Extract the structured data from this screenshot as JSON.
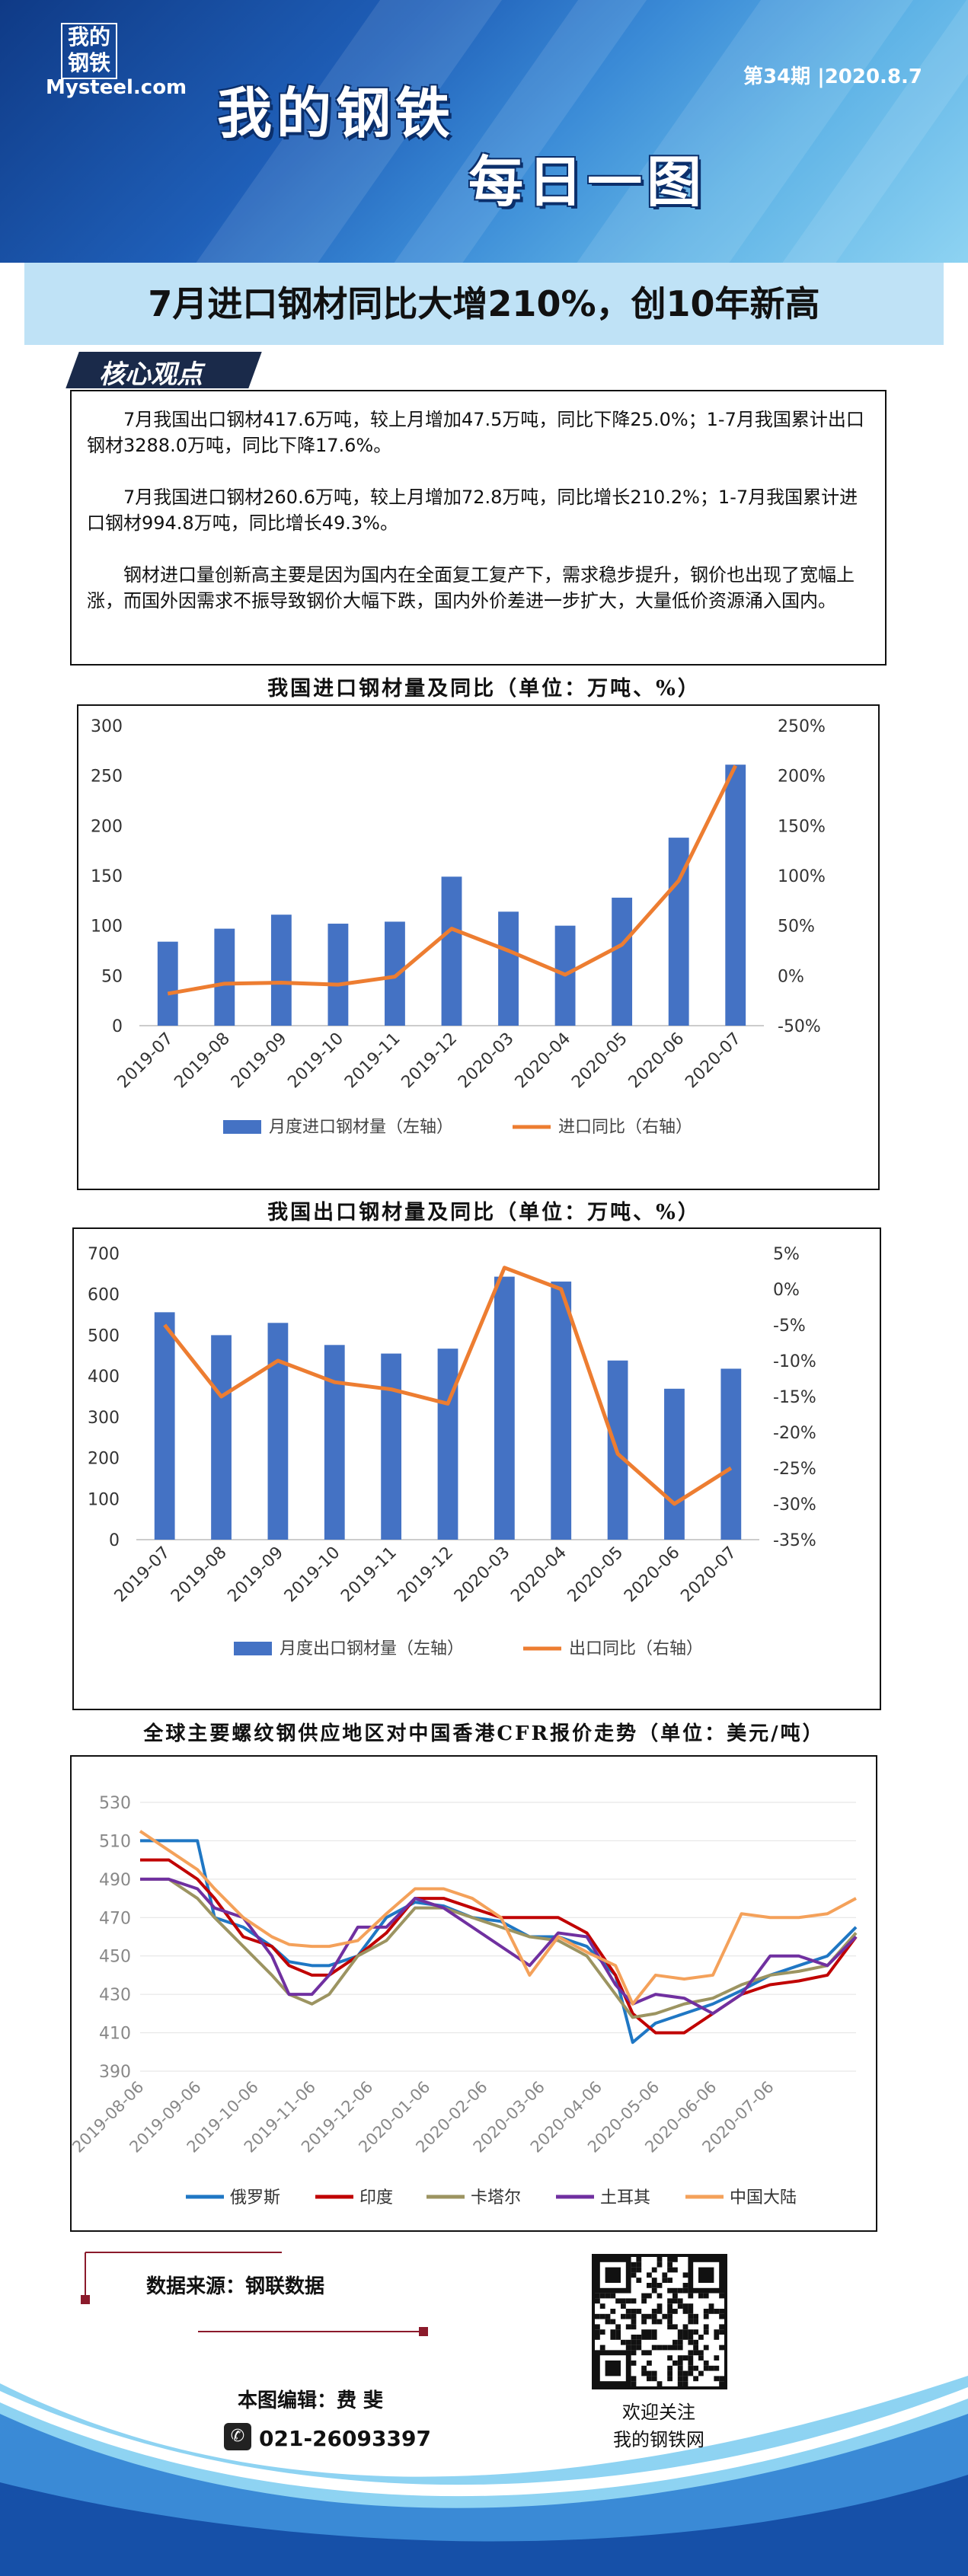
{
  "header": {
    "logo_cn": "我的钢铁",
    "logo_en": "Mysteel.com",
    "issue": "第34期 |2020.8.7",
    "title_main": "我的钢铁",
    "title_sub": "每日一图"
  },
  "headline": "7月进口钢材同比大增210%，创10年新高",
  "core": {
    "tag": "核心观点",
    "paragraphs": [
      "7月我国出口钢材417.6万吨，较上月增加47.5万吨，同比下降25.0%；1-7月我国累计出口钢材3288.0万吨，同比下降17.6%。",
      "7月我国进口钢材260.6万吨，较上月增加72.8万吨，同比增长210.2%；1-7月我国累计进口钢材994.8万吨，同比增长49.3%。",
      "钢材进口量创新高主要是因为国内在全面复工复产下，需求稳步提升，钢价也出现了宽幅上涨，而国外因需求不振导致钢价大幅下跌，国内外价差进一步扩大，大量低价资源涌入国内。"
    ]
  },
  "colors": {
    "bar": "#4472c4",
    "line": "#ed7d31"
  },
  "chart_data": [
    {
      "type": "bar",
      "title": "我国进口钢材量及同比（单位：万吨、%）",
      "categories": [
        "2019-07",
        "2019-08",
        "2019-09",
        "2019-10",
        "2019-11",
        "2019-12",
        "2020-03",
        "2020-04",
        "2020-05",
        "2020-06",
        "2020-07"
      ],
      "series": [
        {
          "name": "月度进口钢材量（左轴）",
          "axis": "left",
          "kind": "bar",
          "values": [
            84,
            97,
            111,
            102,
            104,
            149,
            114,
            100,
            128,
            188,
            261
          ]
        },
        {
          "name": "进口同比（右轴）",
          "axis": "right",
          "kind": "line",
          "values": [
            -18,
            -8,
            -7,
            -9,
            -1,
            47,
            25,
            1,
            31,
            95,
            210
          ]
        }
      ],
      "yleft": {
        "min": 0,
        "max": 300,
        "ticks": [
          "0",
          "50",
          "100",
          "150",
          "200",
          "250",
          "300"
        ]
      },
      "yright": {
        "min": -50,
        "max": 250,
        "ticks": [
          "-50%",
          "0%",
          "50%",
          "100%",
          "150%",
          "200%",
          "250%"
        ]
      },
      "legend_position": "bottom"
    },
    {
      "type": "bar",
      "title": "我国出口钢材量及同比（单位：万吨、%）",
      "categories": [
        "2019-07",
        "2019-08",
        "2019-09",
        "2019-10",
        "2019-11",
        "2019-12",
        "2020-03",
        "2020-04",
        "2020-05",
        "2020-06",
        "2020-07"
      ],
      "series": [
        {
          "name": "月度出口钢材量（左轴）",
          "axis": "left",
          "kind": "bar",
          "values": [
            556,
            500,
            530,
            476,
            455,
            467,
            643,
            631,
            438,
            369,
            418
          ]
        },
        {
          "name": "出口同比（右轴）",
          "axis": "right",
          "kind": "line",
          "values": [
            -5,
            -15,
            -10,
            -13,
            -14,
            -16,
            3,
            0,
            -23,
            -30,
            -25
          ]
        }
      ],
      "yleft": {
        "min": 0,
        "max": 700,
        "ticks": [
          "0",
          "100",
          "200",
          "300",
          "400",
          "500",
          "600",
          "700"
        ]
      },
      "yright": {
        "min": -35,
        "max": 5,
        "ticks": [
          "-35%",
          "-30%",
          "-25%",
          "-20%",
          "-15%",
          "-10%",
          "-5%",
          "0%",
          "5%"
        ]
      },
      "legend_position": "bottom"
    },
    {
      "type": "line",
      "title": "全球主要螺纹钢供应地区对中国香港CFR报价走势（单位：美元/吨）",
      "x_ticks": [
        "2019-08-06",
        "2019-09-06",
        "2019-10-06",
        "2019-11-06",
        "2019-12-06",
        "2020-01-06",
        "2020-02-06",
        "2020-03-06",
        "2020-04-06",
        "2020-05-06",
        "2020-06-06",
        "2020-07-06"
      ],
      "x_range": [
        0,
        12.5
      ],
      "ylim": [
        390,
        530
      ],
      "y_ticks": [
        390,
        410,
        430,
        450,
        470,
        490,
        510,
        530
      ],
      "series": [
        {
          "name": "俄罗斯",
          "color": "#1f77c4",
          "points": [
            [
              0,
              510
            ],
            [
              0.5,
              510
            ],
            [
              1.0,
              510
            ],
            [
              1.3,
              470
            ],
            [
              1.8,
              465
            ],
            [
              2.3,
              455
            ],
            [
              2.6,
              447
            ],
            [
              3.0,
              445
            ],
            [
              3.3,
              445
            ],
            [
              3.8,
              450
            ],
            [
              4.3,
              470
            ],
            [
              4.8,
              478
            ],
            [
              5.3,
              476
            ],
            [
              5.8,
              470
            ],
            [
              6.3,
              468
            ],
            [
              6.8,
              460
            ],
            [
              7.3,
              460
            ],
            [
              7.8,
              455
            ],
            [
              8.3,
              440
            ],
            [
              8.6,
              405
            ],
            [
              9.0,
              415
            ],
            [
              9.5,
              420
            ],
            [
              10.0,
              425
            ],
            [
              10.5,
              432
            ],
            [
              11.0,
              440
            ],
            [
              11.5,
              445
            ],
            [
              12.0,
              450
            ],
            [
              12.5,
              465
            ]
          ]
        },
        {
          "name": "印度",
          "color": "#c00000",
          "points": [
            [
              0,
              500
            ],
            [
              0.5,
              500
            ],
            [
              1.0,
              490
            ],
            [
              1.3,
              480
            ],
            [
              1.8,
              460
            ],
            [
              2.3,
              455
            ],
            [
              2.6,
              445
            ],
            [
              3.0,
              440
            ],
            [
              3.3,
              440
            ],
            [
              3.8,
              450
            ],
            [
              4.3,
              462
            ],
            [
              4.8,
              480
            ],
            [
              5.3,
              480
            ],
            [
              5.8,
              475
            ],
            [
              6.3,
              470
            ],
            [
              6.8,
              470
            ],
            [
              7.3,
              470
            ],
            [
              7.8,
              462
            ],
            [
              8.3,
              440
            ],
            [
              8.6,
              420
            ],
            [
              9.0,
              410
            ],
            [
              9.5,
              410
            ],
            [
              10.0,
              420
            ],
            [
              10.5,
              430
            ],
            [
              11.0,
              435
            ],
            [
              11.5,
              437
            ],
            [
              12.0,
              440
            ],
            [
              12.5,
              460
            ]
          ]
        },
        {
          "name": "卡塔尔",
          "color": "#9c9461",
          "points": [
            [
              0,
              490
            ],
            [
              0.5,
              490
            ],
            [
              1.0,
              480
            ],
            [
              1.3,
              470
            ],
            [
              1.8,
              455
            ],
            [
              2.3,
              440
            ],
            [
              2.6,
              430
            ],
            [
              3.0,
              425
            ],
            [
              3.3,
              430
            ],
            [
              3.8,
              450
            ],
            [
              4.3,
              458
            ],
            [
              4.8,
              475
            ],
            [
              5.3,
              475
            ],
            [
              5.8,
              470
            ],
            [
              6.3,
              465
            ],
            [
              6.8,
              460
            ],
            [
              7.3,
              458
            ],
            [
              7.8,
              450
            ],
            [
              8.3,
              430
            ],
            [
              8.6,
              418
            ],
            [
              9.0,
              420
            ],
            [
              9.5,
              425
            ],
            [
              10.0,
              428
            ],
            [
              10.5,
              435
            ],
            [
              11.0,
              440
            ],
            [
              11.5,
              442
            ],
            [
              12.0,
              445
            ],
            [
              12.5,
              462
            ]
          ]
        },
        {
          "name": "土耳其",
          "color": "#7030a0",
          "points": [
            [
              0,
              490
            ],
            [
              0.5,
              490
            ],
            [
              1.0,
              485
            ],
            [
              1.3,
              475
            ],
            [
              1.8,
              470
            ],
            [
              2.3,
              450
            ],
            [
              2.6,
              430
            ],
            [
              3.0,
              430
            ],
            [
              3.3,
              440
            ],
            [
              3.8,
              465
            ],
            [
              4.3,
              465
            ],
            [
              4.8,
              480
            ],
            [
              5.3,
              475
            ],
            [
              5.8,
              465
            ],
            [
              6.3,
              455
            ],
            [
              6.8,
              445
            ],
            [
              7.3,
              462
            ],
            [
              7.8,
              460
            ],
            [
              8.3,
              435
            ],
            [
              8.6,
              425
            ],
            [
              9.0,
              430
            ],
            [
              9.5,
              428
            ],
            [
              10.0,
              420
            ],
            [
              10.5,
              430
            ],
            [
              11.0,
              450
            ],
            [
              11.5,
              450
            ],
            [
              12.0,
              445
            ],
            [
              12.5,
              460
            ]
          ]
        },
        {
          "name": "中国大陆",
          "color": "#f4a15a",
          "points": [
            [
              0,
              515
            ],
            [
              0.5,
              505
            ],
            [
              1.0,
              495
            ],
            [
              1.3,
              485
            ],
            [
              1.8,
              470
            ],
            [
              2.3,
              460
            ],
            [
              2.6,
              456
            ],
            [
              3.0,
              455
            ],
            [
              3.3,
              455
            ],
            [
              3.8,
              458
            ],
            [
              4.3,
              472
            ],
            [
              4.8,
              485
            ],
            [
              5.3,
              485
            ],
            [
              5.8,
              480
            ],
            [
              6.3,
              470
            ],
            [
              6.8,
              440
            ],
            [
              7.3,
              460
            ],
            [
              7.8,
              452
            ],
            [
              8.3,
              445
            ],
            [
              8.6,
              425
            ],
            [
              9.0,
              440
            ],
            [
              9.5,
              438
            ],
            [
              10.0,
              440
            ],
            [
              10.5,
              472
            ],
            [
              11.0,
              470
            ],
            [
              11.5,
              470
            ],
            [
              12.0,
              472
            ],
            [
              12.5,
              480
            ]
          ]
        }
      ],
      "legend_position": "bottom"
    }
  ],
  "footer": {
    "source": "数据来源：钢联数据",
    "editor": "本图编辑：费 斐",
    "phone": "021-26093397",
    "qr_caption1": "欢迎关注",
    "qr_caption2": "我的钢铁网"
  }
}
